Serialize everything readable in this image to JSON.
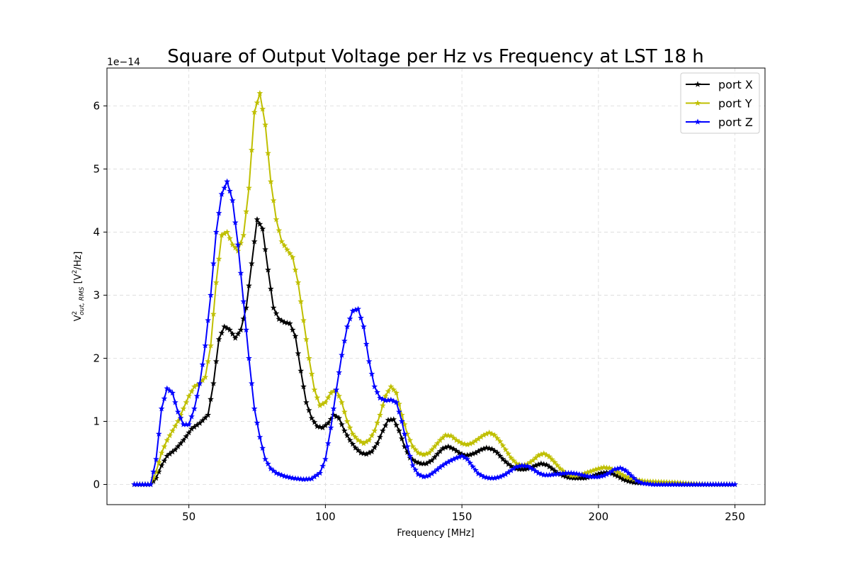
{
  "chart_data": {
    "type": "line",
    "title": "Square of Output Voltage per Hz vs Frequency at LST 18 h",
    "xlabel": "Frequency [MHz]",
    "ylabel_main": "V",
    "ylabel_sup": "2",
    "ylabel_sub": "out, RMS",
    "ylabel_unit_pre": " [V",
    "ylabel_unit_sup": "2",
    "ylabel_unit_post": "/Hz]",
    "y_offset_label": "1e−14",
    "xlim": [
      20,
      261
    ],
    "ylim": [
      -0.32,
      6.6
    ],
    "xticks": [
      50,
      100,
      150,
      200,
      250
    ],
    "xtick_labels": [
      "50",
      "100",
      "150",
      "200",
      "250"
    ],
    "yticks": [
      0,
      1,
      2,
      3,
      4,
      5,
      6
    ],
    "ytick_labels": [
      "0",
      "1",
      "2",
      "3",
      "4",
      "5",
      "6"
    ],
    "grid": true,
    "legend_position": "top-right",
    "x_step": 1,
    "series": [
      {
        "name": "port X",
        "color": "#000000",
        "points": [
          [
            30,
            0
          ],
          [
            36,
            0
          ],
          [
            38,
            0.1
          ],
          [
            40,
            0.3
          ],
          [
            42,
            0.45
          ],
          [
            45,
            0.55
          ],
          [
            48,
            0.7
          ],
          [
            51,
            0.88
          ],
          [
            54,
            0.97
          ],
          [
            57,
            1.1
          ],
          [
            59,
            1.6
          ],
          [
            61,
            2.3
          ],
          [
            63,
            2.5
          ],
          [
            65,
            2.45
          ],
          [
            67,
            2.32
          ],
          [
            69,
            2.45
          ],
          [
            71,
            2.8
          ],
          [
            73,
            3.5
          ],
          [
            75,
            4.2
          ],
          [
            77,
            4.05
          ],
          [
            79,
            3.4
          ],
          [
            81,
            2.8
          ],
          [
            83,
            2.62
          ],
          [
            85,
            2.57
          ],
          [
            87,
            2.55
          ],
          [
            89,
            2.35
          ],
          [
            91,
            1.8
          ],
          [
            93,
            1.3
          ],
          [
            95,
            1.05
          ],
          [
            97,
            0.92
          ],
          [
            99,
            0.9
          ],
          [
            101,
            0.97
          ],
          [
            103,
            1.1
          ],
          [
            105,
            1.05
          ],
          [
            107,
            0.85
          ],
          [
            109,
            0.7
          ],
          [
            111,
            0.58
          ],
          [
            113,
            0.5
          ],
          [
            115,
            0.48
          ],
          [
            117,
            0.52
          ],
          [
            119,
            0.65
          ],
          [
            121,
            0.85
          ],
          [
            123,
            1.02
          ],
          [
            125,
            1.03
          ],
          [
            127,
            0.85
          ],
          [
            129,
            0.6
          ],
          [
            131,
            0.42
          ],
          [
            133,
            0.36
          ],
          [
            135,
            0.33
          ],
          [
            137,
            0.33
          ],
          [
            139,
            0.38
          ],
          [
            141,
            0.48
          ],
          [
            143,
            0.57
          ],
          [
            145,
            0.6
          ],
          [
            147,
            0.56
          ],
          [
            149,
            0.5
          ],
          [
            151,
            0.46
          ],
          [
            153,
            0.47
          ],
          [
            155,
            0.5
          ],
          [
            157,
            0.55
          ],
          [
            159,
            0.58
          ],
          [
            161,
            0.56
          ],
          [
            163,
            0.5
          ],
          [
            165,
            0.4
          ],
          [
            167,
            0.32
          ],
          [
            169,
            0.26
          ],
          [
            171,
            0.24
          ],
          [
            173,
            0.24
          ],
          [
            175,
            0.26
          ],
          [
            177,
            0.3
          ],
          [
            179,
            0.33
          ],
          [
            181,
            0.31
          ],
          [
            183,
            0.25
          ],
          [
            185,
            0.18
          ],
          [
            187,
            0.14
          ],
          [
            189,
            0.11
          ],
          [
            191,
            0.1
          ],
          [
            193,
            0.1
          ],
          [
            195,
            0.1
          ],
          [
            197,
            0.12
          ],
          [
            199,
            0.15
          ],
          [
            201,
            0.18
          ],
          [
            203,
            0.19
          ],
          [
            205,
            0.17
          ],
          [
            207,
            0.13
          ],
          [
            209,
            0.08
          ],
          [
            211,
            0.05
          ],
          [
            213,
            0.03
          ],
          [
            216,
            0.02
          ],
          [
            220,
            0.01
          ],
          [
            230,
            0
          ],
          [
            250,
            0
          ]
        ]
      },
      {
        "name": "port Y",
        "color": "#bfbf00",
        "points": [
          [
            30,
            0
          ],
          [
            36,
            0
          ],
          [
            38,
            0.2
          ],
          [
            40,
            0.5
          ],
          [
            42,
            0.7
          ],
          [
            44,
            0.85
          ],
          [
            46,
            1.0
          ],
          [
            48,
            1.2
          ],
          [
            50,
            1.4
          ],
          [
            52,
            1.55
          ],
          [
            54,
            1.6
          ],
          [
            56,
            1.7
          ],
          [
            58,
            2.2
          ],
          [
            60,
            3.2
          ],
          [
            62,
            3.95
          ],
          [
            64,
            4.0
          ],
          [
            66,
            3.8
          ],
          [
            68,
            3.7
          ],
          [
            70,
            3.95
          ],
          [
            72,
            4.7
          ],
          [
            74,
            5.9
          ],
          [
            76,
            6.2
          ],
          [
            78,
            5.7
          ],
          [
            80,
            4.8
          ],
          [
            82,
            4.2
          ],
          [
            84,
            3.85
          ],
          [
            86,
            3.72
          ],
          [
            88,
            3.6
          ],
          [
            90,
            3.2
          ],
          [
            92,
            2.6
          ],
          [
            94,
            2.0
          ],
          [
            96,
            1.5
          ],
          [
            98,
            1.25
          ],
          [
            100,
            1.3
          ],
          [
            102,
            1.45
          ],
          [
            104,
            1.5
          ],
          [
            106,
            1.3
          ],
          [
            108,
            1.0
          ],
          [
            110,
            0.8
          ],
          [
            112,
            0.7
          ],
          [
            114,
            0.65
          ],
          [
            116,
            0.7
          ],
          [
            118,
            0.85
          ],
          [
            120,
            1.1
          ],
          [
            122,
            1.4
          ],
          [
            124,
            1.55
          ],
          [
            126,
            1.45
          ],
          [
            128,
            1.1
          ],
          [
            130,
            0.8
          ],
          [
            132,
            0.6
          ],
          [
            134,
            0.5
          ],
          [
            136,
            0.47
          ],
          [
            138,
            0.5
          ],
          [
            140,
            0.6
          ],
          [
            142,
            0.7
          ],
          [
            144,
            0.78
          ],
          [
            146,
            0.77
          ],
          [
            148,
            0.7
          ],
          [
            150,
            0.65
          ],
          [
            152,
            0.63
          ],
          [
            154,
            0.66
          ],
          [
            156,
            0.72
          ],
          [
            158,
            0.78
          ],
          [
            160,
            0.82
          ],
          [
            162,
            0.78
          ],
          [
            164,
            0.68
          ],
          [
            166,
            0.55
          ],
          [
            168,
            0.42
          ],
          [
            170,
            0.33
          ],
          [
            172,
            0.3
          ],
          [
            174,
            0.32
          ],
          [
            176,
            0.38
          ],
          [
            178,
            0.46
          ],
          [
            180,
            0.49
          ],
          [
            182,
            0.44
          ],
          [
            184,
            0.35
          ],
          [
            186,
            0.25
          ],
          [
            188,
            0.18
          ],
          [
            190,
            0.14
          ],
          [
            192,
            0.14
          ],
          [
            194,
            0.16
          ],
          [
            196,
            0.19
          ],
          [
            198,
            0.22
          ],
          [
            200,
            0.25
          ],
          [
            202,
            0.27
          ],
          [
            204,
            0.26
          ],
          [
            206,
            0.22
          ],
          [
            208,
            0.17
          ],
          [
            210,
            0.12
          ],
          [
            213,
            0.08
          ],
          [
            217,
            0.05
          ],
          [
            222,
            0.04
          ],
          [
            228,
            0.03
          ],
          [
            235,
            0.01
          ],
          [
            240,
            0
          ],
          [
            250,
            0
          ]
        ]
      },
      {
        "name": "port Z",
        "color": "#0000ff",
        "points": [
          [
            30,
            0
          ],
          [
            36,
            0
          ],
          [
            38,
            0.4
          ],
          [
            40,
            1.2
          ],
          [
            42,
            1.52
          ],
          [
            44,
            1.45
          ],
          [
            46,
            1.15
          ],
          [
            48,
            0.95
          ],
          [
            50,
            0.95
          ],
          [
            52,
            1.2
          ],
          [
            54,
            1.6
          ],
          [
            56,
            2.2
          ],
          [
            58,
            3.0
          ],
          [
            60,
            4.0
          ],
          [
            62,
            4.6
          ],
          [
            64,
            4.8
          ],
          [
            66,
            4.5
          ],
          [
            68,
            3.8
          ],
          [
            70,
            2.9
          ],
          [
            72,
            2.0
          ],
          [
            74,
            1.2
          ],
          [
            76,
            0.75
          ],
          [
            78,
            0.4
          ],
          [
            80,
            0.25
          ],
          [
            82,
            0.18
          ],
          [
            85,
            0.13
          ],
          [
            88,
            0.1
          ],
          [
            92,
            0.08
          ],
          [
            95,
            0.09
          ],
          [
            98,
            0.18
          ],
          [
            100,
            0.4
          ],
          [
            102,
            0.9
          ],
          [
            104,
            1.5
          ],
          [
            106,
            2.05
          ],
          [
            108,
            2.5
          ],
          [
            110,
            2.75
          ],
          [
            112,
            2.78
          ],
          [
            114,
            2.5
          ],
          [
            116,
            1.95
          ],
          [
            118,
            1.55
          ],
          [
            120,
            1.37
          ],
          [
            122,
            1.33
          ],
          [
            124,
            1.34
          ],
          [
            126,
            1.3
          ],
          [
            128,
            1.0
          ],
          [
            130,
            0.6
          ],
          [
            132,
            0.3
          ],
          [
            134,
            0.16
          ],
          [
            136,
            0.12
          ],
          [
            138,
            0.14
          ],
          [
            140,
            0.2
          ],
          [
            142,
            0.27
          ],
          [
            144,
            0.33
          ],
          [
            146,
            0.38
          ],
          [
            148,
            0.42
          ],
          [
            150,
            0.45
          ],
          [
            152,
            0.4
          ],
          [
            154,
            0.28
          ],
          [
            156,
            0.17
          ],
          [
            158,
            0.12
          ],
          [
            160,
            0.1
          ],
          [
            162,
            0.1
          ],
          [
            164,
            0.12
          ],
          [
            166,
            0.16
          ],
          [
            168,
            0.22
          ],
          [
            170,
            0.28
          ],
          [
            172,
            0.3
          ],
          [
            174,
            0.29
          ],
          [
            176,
            0.24
          ],
          [
            178,
            0.18
          ],
          [
            180,
            0.15
          ],
          [
            182,
            0.15
          ],
          [
            184,
            0.16
          ],
          [
            186,
            0.17
          ],
          [
            188,
            0.18
          ],
          [
            190,
            0.18
          ],
          [
            192,
            0.17
          ],
          [
            194,
            0.15
          ],
          [
            196,
            0.13
          ],
          [
            198,
            0.12
          ],
          [
            200,
            0.12
          ],
          [
            202,
            0.14
          ],
          [
            204,
            0.18
          ],
          [
            206,
            0.24
          ],
          [
            208,
            0.26
          ],
          [
            210,
            0.22
          ],
          [
            212,
            0.14
          ],
          [
            214,
            0.06
          ],
          [
            216,
            0.02
          ],
          [
            220,
            0
          ],
          [
            250,
            0
          ]
        ]
      }
    ]
  }
}
